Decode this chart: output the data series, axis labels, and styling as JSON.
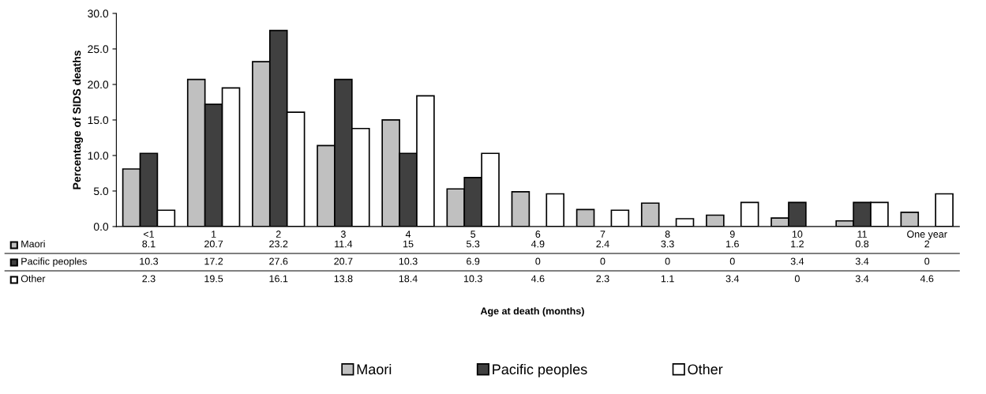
{
  "chart_data": {
    "type": "bar",
    "ylabel": "Percentage of SIDS deaths",
    "annotations": [
      "Age at death (months)"
    ],
    "categories": [
      "<1",
      "1",
      "2",
      "3",
      "4",
      "5",
      "6",
      "7",
      "8",
      "9",
      "10",
      "11",
      "One year"
    ],
    "series": [
      {
        "name": "Maori",
        "color": "#c0c0c0",
        "values": [
          8.1,
          20.7,
          23.2,
          11.4,
          15,
          5.3,
          4.9,
          2.4,
          3.3,
          1.6,
          1.2,
          0.8,
          2
        ]
      },
      {
        "name": "Pacific peoples",
        "color": "#404040",
        "values": [
          10.3,
          17.2,
          27.6,
          20.7,
          10.3,
          6.9,
          0,
          0,
          0,
          0,
          3.4,
          3.4,
          0
        ]
      },
      {
        "name": "Other",
        "color": "#ffffff",
        "values": [
          2.3,
          19.5,
          16.1,
          13.8,
          18.4,
          10.3,
          4.6,
          2.3,
          1.1,
          3.4,
          0,
          3.4,
          4.6
        ]
      }
    ],
    "ylim": [
      0,
      30
    ],
    "yticks": [
      {
        "value": 0,
        "label": "0.0"
      },
      {
        "value": 5,
        "label": "5.0"
      },
      {
        "value": 10,
        "label": "10.0"
      },
      {
        "value": 15,
        "label": "15.0"
      },
      {
        "value": 20,
        "label": "20.0"
      },
      {
        "value": 25,
        "label": "25.0"
      },
      {
        "value": 30,
        "label": "30.0"
      }
    ],
    "data_labels": true,
    "grid": false,
    "legend": "bottom"
  }
}
